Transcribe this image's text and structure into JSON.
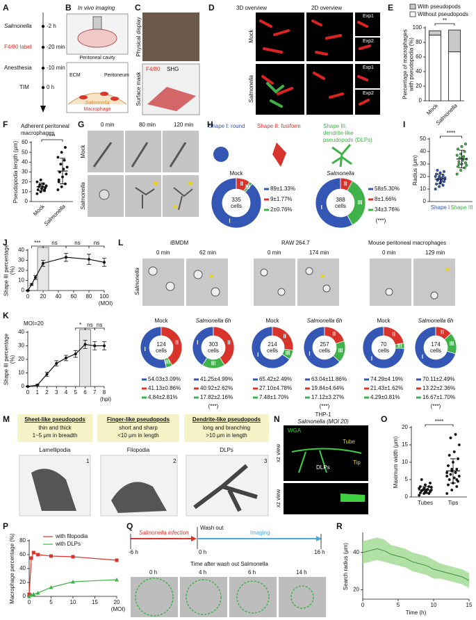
{
  "figure": {
    "panel_letters": [
      "A",
      "B",
      "C",
      "D",
      "E",
      "F",
      "G",
      "H",
      "I",
      "J",
      "K",
      "L",
      "M",
      "N",
      "O",
      "P",
      "Q",
      "R"
    ],
    "A": {
      "events": [
        {
          "label": "Salmonella",
          "time": "-2 h"
        },
        {
          "label": "F4/80 label",
          "time": "-20 min"
        },
        {
          "label": "Anesthesia",
          "time": "-10 min"
        },
        {
          "label": "TIM",
          "time": "0 h"
        }
      ]
    },
    "B": {
      "title": "In vivo imaging",
      "cavity": "Peritoneal cavity",
      "ecm": "ECM",
      "peritoneum": "Peritoneum",
      "bacteria": "Salmonella",
      "cell": "Macrophage"
    },
    "C": {
      "top": "Physical display",
      "bottom": "Surface mask",
      "stain1": "F4/80",
      "stain2": "SHG"
    },
    "D": {
      "col1": "3D overview",
      "col2": "2D overview",
      "exp1": "Exp1",
      "exp2": "Exp2",
      "row1": "Mock",
      "row2": "Salmonella"
    },
    "G": {
      "times": [
        "0 min",
        "80 min",
        "120 min"
      ],
      "rows": [
        "Mock",
        "Salmonella"
      ]
    },
    "H": {
      "shape1": "Shape I: round",
      "shape2": "Shape II: fusiform",
      "shape3": [
        "Shape III:",
        "dendrite-like",
        "pseudopods (DLPs)"
      ]
    },
    "L": {
      "cells": [
        "iBMDM",
        "RAW 264.7",
        "Mouse peritoneal macrophages"
      ],
      "times": [
        "0 min",
        "62 min",
        "0 min",
        "174 min",
        "0 min",
        "129 min"
      ],
      "row": "Salmonella"
    },
    "M": {
      "types": [
        {
          "title": "Sheet-like pseudopods",
          "desc": [
            "thin and thick",
            "1~5 μm in breadth"
          ],
          "name": "Lamellipodia",
          "index": "1"
        },
        {
          "title": "Finger-like pseudopods",
          "desc": [
            "short and sharp",
            "<10 μm in length"
          ],
          "name": "Filopodia",
          "index": "2"
        },
        {
          "title": "Dendrite-like pseudopods",
          "desc": [
            "long and  branching",
            ">10 μm in length"
          ],
          "name": "DLPs",
          "index": "3"
        }
      ]
    },
    "N": {
      "cell": "THP-1",
      "condition": "Salmonella (MOI 20)",
      "stain": "WGA",
      "tube": "Tube",
      "tip": "Tip",
      "dlps": "DLPs",
      "view": "xz view"
    },
    "Q": {
      "infection": "Salmonella infection",
      "washout": "Wash out",
      "imaging": "Imaging",
      "times": [
        "-6 h",
        "0 h",
        "16 h"
      ],
      "caption": "Time after wash out Salmonella",
      "frames": [
        "0 h",
        "4 h",
        "6 h",
        "14 h"
      ]
    }
  },
  "chart_data": [
    {
      "type": "bar",
      "stacked": true,
      "y_label": [
        "Percentage of macrophages",
        "with pseudopodia (%)"
      ],
      "categories": [
        "Mock",
        "Salmonella"
      ],
      "series": [
        {
          "name": "With pseudopods",
          "color": "#c8c8c8",
          "values": [
            6,
            30
          ]
        },
        {
          "name": "Without pseudopods",
          "color": "#ffffff",
          "values": [
            90,
            67
          ]
        }
      ],
      "ylim": [
        0,
        100
      ],
      "yticks": [
        0,
        20,
        40,
        60,
        80,
        100
      ],
      "annotation": "**"
    },
    {
      "type": "dot",
      "title": [
        "Adherent peritoneal",
        "macrophages"
      ],
      "y_label": [
        "Pseudopodia length (μm)"
      ],
      "categories": [
        "Mock",
        "Salmonella"
      ],
      "points": [
        [
          8,
          10,
          11,
          12,
          13,
          14,
          15,
          15,
          16,
          17,
          18,
          20,
          22,
          12
        ],
        [
          12,
          15,
          18,
          22,
          25,
          28,
          30,
          33,
          35,
          38,
          42,
          45,
          50,
          55,
          20
        ]
      ],
      "values": [
        15,
        31
      ],
      "errors": [
        4,
        13
      ],
      "colors": [
        "#111111",
        "#111111"
      ],
      "ylim": [
        0,
        60
      ],
      "yticks": [
        0,
        10,
        20,
        30,
        40,
        50,
        60
      ],
      "annotation": "***"
    },
    {
      "type": "pie",
      "title": "Mock",
      "center": [
        "335",
        "cells"
      ],
      "categories": [
        "I",
        "II",
        "III"
      ],
      "values": [
        89,
        9,
        2
      ],
      "value_labels": [
        "89±1.33%",
        "9±1.77%",
        "2±0.76%"
      ],
      "colors": [
        "#3457b5",
        "#d8342b",
        "#3fb34a"
      ]
    },
    {
      "type": "pie",
      "title": "Salmonella",
      "center": [
        "388",
        "cells"
      ],
      "categories": [
        "I",
        "II",
        "III"
      ],
      "values": [
        58,
        8,
        34
      ],
      "value_labels": [
        "58±5.30%",
        "8±1.66%",
        "34±3.76%"
      ],
      "colors": [
        "#3457b5",
        "#d8342b",
        "#3fb34a"
      ],
      "annotation": "(***)"
    },
    {
      "type": "dot",
      "y_label": [
        "Radius (μm)"
      ],
      "categories": [
        "Shape I",
        "Shape III"
      ],
      "points": [
        [
          10,
          12,
          13,
          14,
          15,
          16,
          17,
          17,
          18,
          18,
          19,
          20,
          20,
          21,
          22,
          23,
          24,
          25,
          16,
          19
        ],
        [
          22,
          25,
          27,
          28,
          30,
          31,
          32,
          33,
          34,
          35,
          36,
          37,
          38,
          40,
          42,
          44,
          46,
          30,
          35,
          29
        ]
      ],
      "values": [
        18,
        34
      ],
      "errors": [
        4,
        7
      ],
      "colors": [
        "#3457b5",
        "#3fb34a"
      ],
      "ylim": [
        0,
        50
      ],
      "yticks": [
        0,
        10,
        20,
        30,
        40,
        50
      ],
      "annotation": "****"
    },
    {
      "type": "line",
      "y_label": [
        "Shape III percentage",
        "(%)"
      ],
      "x_label": "(MOI)",
      "x": [
        0,
        5,
        10,
        20,
        50,
        80,
        100
      ],
      "series": [
        {
          "color": "#111111",
          "values": [
            0,
            6,
            13,
            27,
            33,
            31,
            28
          ],
          "errors": [
            0.5,
            1,
            2,
            3,
            4,
            5,
            4
          ]
        }
      ],
      "xlim": [
        0,
        100
      ],
      "xticks": [
        0,
        20,
        40,
        60,
        80,
        100
      ],
      "ylim": [
        0,
        40
      ],
      "yticks": [
        0,
        10,
        20,
        30,
        40
      ],
      "highlight": 20,
      "annotations": [
        {
          "text": "***",
          "x": [
            5,
            20
          ]
        },
        {
          "text": "ns",
          "x": [
            20,
            50
          ]
        },
        {
          "text": "ns",
          "x": [
            50,
            80
          ]
        },
        {
          "text": "ns",
          "x": [
            80,
            100
          ]
        }
      ]
    },
    {
      "type": "line",
      "subtitle": "MOI=20",
      "y_label": [
        "Shape III percentage",
        "(%)"
      ],
      "x_label": "(hpi)",
      "x": [
        0,
        1,
        2,
        3,
        4,
        5,
        6,
        7,
        8
      ],
      "series": [
        {
          "color": "#111111",
          "values": [
            0,
            1,
            9,
            17,
            21,
            24,
            31,
            30,
            30
          ],
          "errors": [
            0.3,
            0.5,
            1.5,
            2,
            2,
            2.5,
            3,
            3,
            3
          ]
        }
      ],
      "xlim": [
        0,
        8
      ],
      "xticks": [
        0,
        1,
        2,
        3,
        4,
        5,
        6,
        7,
        8
      ],
      "ylim": [
        0,
        40
      ],
      "yticks": [
        0,
        10,
        20,
        30,
        40
      ],
      "highlight": 6,
      "annotations": [
        {
          "text": "*",
          "x": [
            5,
            6
          ]
        },
        {
          "text": "ns",
          "x": [
            6,
            7
          ]
        },
        {
          "text": "ns",
          "x": [
            7,
            8
          ]
        }
      ]
    },
    {
      "type": "pie",
      "title": "Mock",
      "center": [
        "124",
        "cells"
      ],
      "categories": [
        "I",
        "II",
        "III"
      ],
      "values": [
        54.03,
        41.13,
        4.84
      ],
      "value_labels": [
        "54.03±3.09%",
        "41.13±0.86%",
        "4.84±2.81%"
      ],
      "colors": [
        "#3457b5",
        "#d8342b",
        "#3fb34a"
      ]
    },
    {
      "type": "pie",
      "title": "Salmonella 6h",
      "center": [
        "303",
        "cells"
      ],
      "categories": [
        "I",
        "II",
        "III"
      ],
      "values": [
        41.25,
        40.92,
        17.82
      ],
      "value_labels": [
        "41.25±4.99%",
        "40.92±2.62%",
        "17.82±2.16%"
      ],
      "colors": [
        "#3457b5",
        "#d8342b",
        "#3fb34a"
      ],
      "annotation": "(***)"
    },
    {
      "type": "pie",
      "title": "Mock",
      "center": [
        "214",
        "cells"
      ],
      "categories": [
        "I",
        "II",
        "III"
      ],
      "values": [
        65.42,
        27.1,
        7.48
      ],
      "value_labels": [
        "65.42±2.49%",
        "27.10±4.78%",
        "7.48±1.70%"
      ],
      "colors": [
        "#3457b5",
        "#d8342b",
        "#3fb34a"
      ]
    },
    {
      "type": "pie",
      "title": "Salmonella 6h",
      "center": [
        "257",
        "cells"
      ],
      "categories": [
        "I",
        "II",
        "III"
      ],
      "values": [
        63.04,
        19.84,
        17.12
      ],
      "value_labels": [
        "63.04±11.86%",
        "19.84±4.64%",
        "17.12±3.27%"
      ],
      "colors": [
        "#3457b5",
        "#d8342b",
        "#3fb34a"
      ],
      "annotation": "(***)"
    },
    {
      "type": "pie",
      "title": "Mock",
      "center": [
        "70",
        "cells"
      ],
      "categories": [
        "I",
        "II",
        "III"
      ],
      "values": [
        74.29,
        21.43,
        4.29
      ],
      "value_labels": [
        "74.29±4.19%",
        "21.43±1.62%",
        "4.29±0.81%"
      ],
      "colors": [
        "#3457b5",
        "#d8342b",
        "#3fb34a"
      ]
    },
    {
      "type": "pie",
      "title": "Salmonella 6h",
      "center": [
        "174",
        "cells"
      ],
      "categories": [
        "I",
        "II",
        "III"
      ],
      "values": [
        70.11,
        13.22,
        16.67
      ],
      "value_labels": [
        "70.11±2.49%",
        "13.22±2.36%",
        "16.67±1.70%"
      ],
      "colors": [
        "#3457b5",
        "#d8342b",
        "#3fb34a"
      ],
      "annotation": "(***)"
    },
    {
      "type": "dot",
      "y_label": [
        "Maximum width (μm)"
      ],
      "categories": [
        "Tubes",
        "Tips"
      ],
      "points": [
        [
          0.5,
          1,
          1,
          1.2,
          1.5,
          1.5,
          1.8,
          2,
          2,
          2,
          2.2,
          2.5,
          2.5,
          3,
          3,
          3.5,
          4,
          5,
          1.3,
          2.8
        ],
        [
          1,
          2,
          3,
          3.5,
          4,
          4.5,
          5,
          5.5,
          6,
          6.5,
          7,
          7,
          7.5,
          8,
          9,
          10,
          11,
          12,
          13,
          15,
          17,
          18,
          6,
          8,
          5
        ]
      ],
      "values": [
        2,
        7.5
      ],
      "errors": [
        1,
        3.5
      ],
      "colors": [
        "#111111",
        "#111111"
      ],
      "ylim": [
        0,
        20
      ],
      "yticks": [
        0,
        5,
        10,
        15,
        20
      ],
      "annotation": "****"
    },
    {
      "type": "line",
      "y_label": [
        "Macrophage percentage (%)"
      ],
      "x_label": "(MOI)",
      "x": [
        0,
        0.5,
        1,
        2,
        5,
        10,
        20
      ],
      "series": [
        {
          "name": "with filopodia",
          "color": "#d8342b",
          "marker": "square",
          "values": [
            3,
            55,
            63,
            60,
            58,
            57,
            52
          ]
        },
        {
          "name": "with DLPs",
          "color": "#3fb34a",
          "marker": "triangle",
          "values": [
            0,
            2,
            3,
            5,
            13,
            21,
            24
          ]
        }
      ],
      "xlim": [
        0,
        20
      ],
      "xticks": [
        0,
        5,
        10,
        15,
        20
      ],
      "ylim": [
        0,
        80
      ],
      "yticks": [
        0,
        20,
        40,
        60,
        80
      ]
    },
    {
      "type": "area",
      "y_label": [
        "Search radius (μm)"
      ],
      "x_label": "Time (h)",
      "x": [
        0,
        1,
        2,
        3,
        4,
        5,
        6,
        7,
        8,
        9,
        10,
        11,
        12,
        13,
        14,
        15
      ],
      "series": [
        {
          "color": "#3d8f3d",
          "band_color": "#9fd98f",
          "values": [
            40,
            41,
            42,
            41,
            39,
            38,
            37,
            35,
            34,
            33,
            31,
            30,
            29,
            28,
            27,
            25
          ],
          "errors": [
            6,
            6,
            6,
            6,
            5,
            5,
            5,
            5,
            5,
            5,
            5,
            4,
            4,
            4,
            4,
            4
          ]
        }
      ],
      "xlim": [
        0,
        15
      ],
      "xticks": [
        0,
        5,
        10,
        15
      ],
      "ylim": [
        15,
        50
      ],
      "yticks": [
        20,
        40
      ]
    }
  ]
}
